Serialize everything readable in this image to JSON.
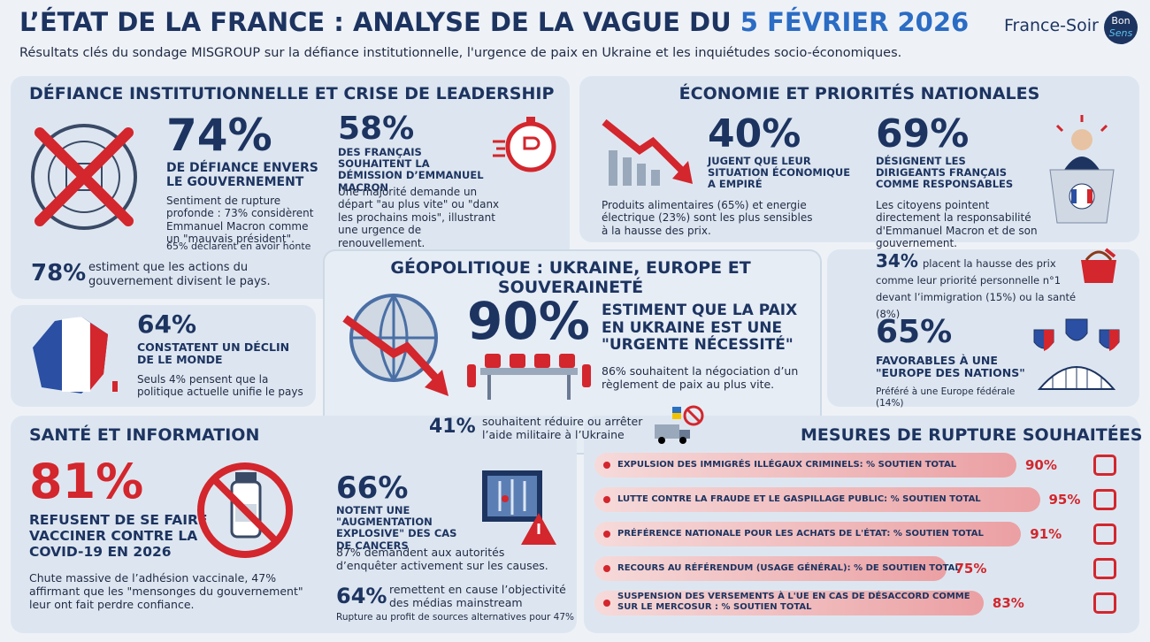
{
  "header": {
    "title": "L’ÉTAT DE LA FRANCE : ANALYSE DE LA VAGUE DU",
    "title_date": "5 FÉVRIER 2026",
    "subtitle": "Résultats clés du sondage MISGROUP sur la défiance institutionnelle, l'urgence de paix en Ukraine et les inquiétudes socio-économiques.",
    "brand": "France-Soir",
    "logo_top": "Bon",
    "logo_bottom": "Sens"
  },
  "defiance": {
    "title": "DÉFIANCE INSTITUTIONNELLE ET CRISE DE LEADERSHIP",
    "stat1": {
      "value": "74%",
      "label": "DE DÉFIANCE ENVERS LE GOUVERNEMENT",
      "text": "Sentiment de rupture profonde : 73% considèrent Emmanuel Macron comme un \"mauvais président\".",
      "note": "65% déclarent en avoir honte"
    },
    "stat2": {
      "value": "58%",
      "label": "DES FRANÇAIS SOUHAITENT LA DÉMISSION D’EMMANUEL MACRON",
      "text": "Une majorité demande un départ \"au plus vite\" ou \"danx les prochains mois\", illustrant une urgence de renouvellement."
    },
    "stat3": {
      "value": "78%",
      "text": "estiment que les actions du gouvernement divisent le pays."
    },
    "stat4": {
      "value": "64%",
      "label": "CONSTATENT UN DÉCLIN DE LE MONDE",
      "text": "Seuls 4% pensent que la politique actuelle unifie le pays"
    }
  },
  "economie": {
    "title": "ÉCONOMIE ET PRIORITÉS NATIONALES",
    "stat1": {
      "value": "40%",
      "label": "JUGENT QUE LEUR SITUATION ÉCONOMIQUE A EMPIRÉ",
      "text": "Produits alimentaires (65%) et energie électrique (23%) sont les plus sensibles à la hausse des prix."
    },
    "stat2": {
      "value": "69%",
      "label": "DÉSIGNENT LES DIRIGEANTS FRANÇAIS COMME RESPONSABLES",
      "text": "Les citoyens pointent directement la responsabilité d'Emmanuel Macron et de son gouvernement."
    },
    "stat3": {
      "value": "34%",
      "text": "placent la hausse des prix comme leur priorité personnelle n°1 devant l’immigration (15%) ou la santé (8%)"
    },
    "stat4": {
      "value": "65%",
      "label": "FAVORABLES À UNE \"EUROPE DES NATIONS\"",
      "text": "Préféré à une Europe fédérale (14%)"
    }
  },
  "geopolitique": {
    "title": "GÉOPOLITIQUE : UKRAINE, EUROPE ET SOUVERAINETÉ",
    "stat1": {
      "value": "90%",
      "label": "ESTIMENT QUE LA PAIX EN UKRAINE EST UNE \"URGENTE NÉCESSITÉ\"",
      "text": "86% souhaitent la négociation d’un règlement de paix au plus vite."
    },
    "stat2": {
      "value": "41%",
      "text": "souhaitent réduire ou arrêter l’aide militaire à l’Ukraine"
    }
  },
  "sante": {
    "title": "SANTÉ ET INFORMATION",
    "stat1": {
      "value": "81%",
      "label": "REFUSENT DE SE FAIRE VACCINER CONTRE LA COVID-19 EN 2026",
      "text": "Chute massive de l’adhésion vaccinale, 47% affirmant que les \"mensonges du gouvernement\" leur ont fait perdre confiance."
    },
    "stat2": {
      "value": "66%",
      "label": "NOTENT UNE \"AUGMENTATION EXPLOSIVE\" DES CAS DE CANCERS",
      "text": "87% demandent aux autorités d’enquêter activement sur les causes."
    },
    "stat3": {
      "value": "64%",
      "text": "remettent en cause l’objectivité des médias mainstream",
      "note": "Rupture au profit de sources alternatives pour 47%"
    }
  },
  "mesures": {
    "title": "MESURES DE RUPTURE SOUHAITÉES",
    "items": [
      {
        "label": "EXPULSION DES IMMIGRÉS ILLÉGAUX CRIMINELS: % SOUTIEN TOTAL",
        "value": 90,
        "value_label": "90%"
      },
      {
        "label": "LUTTE CONTRE LA FRAUDE ET LE GASPILLAGE PUBLIC: % SOUTIEN TOTAL",
        "value": 95,
        "value_label": "95%"
      },
      {
        "label": "PRÉFÉRENCE NATIONALE POUR LES ACHATS DE L'ÉTAT: % SOUTIEN TOTAL",
        "value": 91,
        "value_label": "91%"
      },
      {
        "label": "RECOURS AU RÉFÉRENDUM (USAGE GÉNÉRAL): % DE SOUTIEN TOTAL",
        "value": 75,
        "value_label": "75%"
      },
      {
        "label": "SUSPENSION DES VERSEMENTS À L'UE EN CAS DE DÉSACCORD COMME SUR LE MERCOSUR : % SOUTIEN TOTAL",
        "value": 83,
        "value_label": "83%"
      }
    ]
  }
}
